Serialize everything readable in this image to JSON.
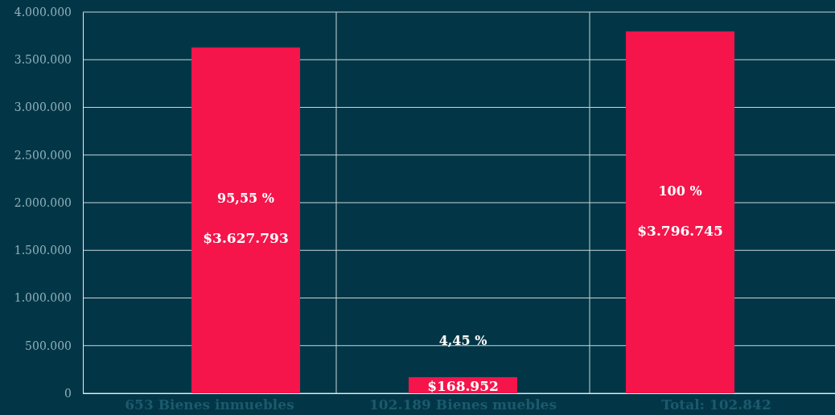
{
  "chart_data": {
    "type": "bar",
    "categories": [
      "653 Bienes inmuebles",
      "102.189 Bienes muebles",
      "Total: 102.842"
    ],
    "values": [
      3627793,
      168952,
      3796745
    ],
    "color": "#f5154b",
    "value_labels": [
      "$3.627.793",
      "$168.952",
      "$3.796.745"
    ],
    "annotations": [
      "95,55 %",
      "4,45 %",
      "100 %"
    ],
    "ylim": [
      0,
      4000000
    ],
    "yticks": [
      {
        "value": 0,
        "label": "0"
      },
      {
        "value": 500000,
        "label": "500.000"
      },
      {
        "value": 1000000,
        "label": "1.000.000"
      },
      {
        "value": 1500000,
        "label": "1.500.000"
      },
      {
        "value": 2000000,
        "label": "2.000.000"
      },
      {
        "value": 2500000,
        "label": "2.500.000"
      },
      {
        "value": 3000000,
        "label": "3.000.000"
      },
      {
        "value": 3500000,
        "label": "3.500.000"
      },
      {
        "value": 4000000,
        "label": "4.000.000"
      }
    ],
    "grid": true
  }
}
